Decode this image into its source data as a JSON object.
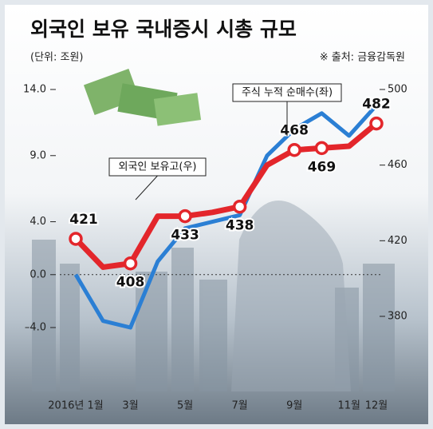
{
  "chart_data": {
    "type": "line",
    "title": "외국인 보유 국내증시 시총 규모",
    "subtitle": "(단위: 조원)",
    "source": "※ 출처: 금융감독원",
    "categories": [
      "2016년 1월",
      null,
      "3월",
      null,
      "5월",
      null,
      "7월",
      null,
      "9월",
      null,
      "11월",
      "12월"
    ],
    "series": [
      {
        "name": "주식 누적 순매수(좌)",
        "color": "#2b7fd4",
        "axis": "y",
        "values": [
          0,
          -3.5,
          -4,
          1,
          3.5,
          4,
          4.5,
          9,
          11,
          12.2,
          10.5,
          12.8
        ]
      },
      {
        "name": "외국인 보유고(우)",
        "color": "#e3262b",
        "axis": "y2",
        "values": [
          421,
          406,
          408,
          433,
          433,
          435,
          438,
          460,
          468,
          469,
          470,
          482
        ],
        "value_labels": [
          "421",
          null,
          "408",
          null,
          "433",
          null,
          "438",
          null,
          "468",
          "469",
          null,
          "482"
        ]
      }
    ],
    "ylim": [
      -4,
      14
    ],
    "yticks": [
      {
        "value": 14,
        "label": "14.0"
      },
      {
        "value": 9,
        "label": "9.0"
      },
      {
        "value": 4,
        "label": "4.0"
      },
      {
        "value": 0,
        "label": "0.0"
      },
      {
        "value": -4,
        "label": "–4.0"
      }
    ],
    "y2lim": [
      380,
      500
    ],
    "y2ticks": [
      500,
      460,
      420,
      380
    ]
  }
}
